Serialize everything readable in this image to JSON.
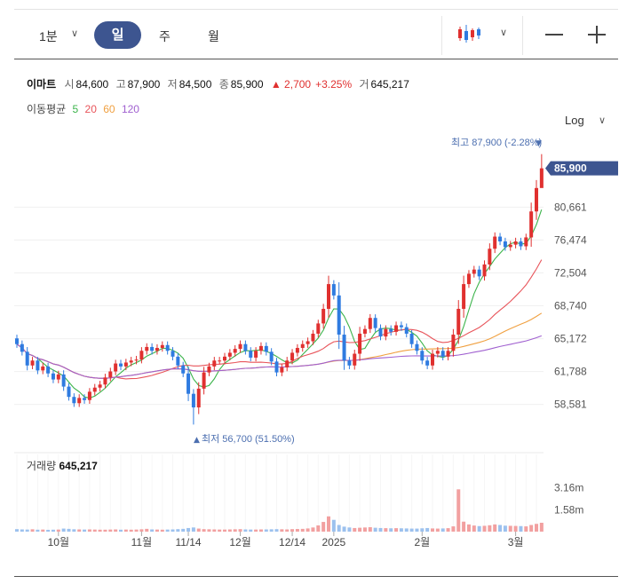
{
  "toolbar": {
    "period_minute": "1분",
    "tab_day": "일",
    "tab_week": "주",
    "tab_month": "월",
    "log_label": "Log"
  },
  "quote": {
    "name": "이마트",
    "open_label": "시",
    "open": "84,600",
    "high_label": "고",
    "high": "87,900",
    "low_label": "저",
    "low": "84,500",
    "close_label": "종",
    "close": "85,900",
    "change": "▲ 2,700",
    "change_pct": "+3.25%",
    "volume_label": "거",
    "volume": "645,217"
  },
  "moving_average": {
    "label": "이동평균",
    "periods": [
      "5",
      "20",
      "60",
      "120"
    ],
    "colors": [
      "#3cb44b",
      "#e8545a",
      "#f0a040",
      "#a060d0"
    ]
  },
  "volume_caption": {
    "label": "거래량",
    "value": "645,217"
  },
  "colors": {
    "up": "#e0302f",
    "down": "#2f7be0",
    "accent": "#3d5590"
  },
  "chart_data": {
    "type": "candlestick",
    "scale": "log",
    "y_ticks": [
      "58,581",
      "61,788",
      "65,172",
      "68,740",
      "72,504",
      "76,474",
      "80,661"
    ],
    "y_tick_values": [
      58581,
      61788,
      65172,
      68740,
      72504,
      76474,
      80661
    ],
    "ylim": [
      56000,
      89000
    ],
    "x_ticks": [
      "10월",
      "11월",
      "11/14",
      "12월",
      "12/14",
      "2025",
      "2월",
      "3월"
    ],
    "x_tick_index": [
      8,
      24,
      33,
      43,
      53,
      61,
      78,
      96
    ],
    "current_price_label": "85,900",
    "high_annotation": "최고 87,900 (-2.28%)",
    "high_annotation_marker": "▼",
    "low_annotation": "최저 56,700 (51.50%)",
    "low_annotation_marker": "▲",
    "volume_ticks": [
      "3.16m",
      "1.58m"
    ],
    "volume_tick_values": [
      3160000,
      1580000
    ],
    "close": [
      64600,
      63800,
      62400,
      62900,
      61900,
      62300,
      61600,
      61000,
      61500,
      60300,
      59300,
      58700,
      59200,
      59000,
      59800,
      60200,
      60500,
      61200,
      61800,
      62600,
      62300,
      62700,
      62900,
      63000,
      63900,
      64300,
      63900,
      64200,
      64500,
      63900,
      63300,
      62400,
      61600,
      59600,
      58300,
      60100,
      61700,
      62300,
      62900,
      62900,
      63300,
      63700,
      64100,
      64600,
      63900,
      63200,
      63900,
      64400,
      63800,
      62800,
      61700,
      62200,
      62900,
      63700,
      64200,
      64600,
      64900,
      65700,
      66800,
      68400,
      71200,
      69900,
      65600,
      62900,
      62400,
      63600,
      65700,
      66200,
      67400,
      66300,
      65400,
      66200,
      65900,
      66600,
      66400,
      65700,
      64600,
      63900,
      62900,
      62400,
      63600,
      63900,
      63300,
      63900,
      65600,
      68400,
      71200,
      72400,
      72900,
      72100,
      73500,
      75400,
      76900,
      76300,
      75600,
      75900,
      76300,
      75700,
      76800,
      80100,
      83200,
      85900
    ],
    "volume_values": [
      180000,
      160000,
      150000,
      170000,
      140000,
      150000,
      130000,
      140000,
      150000,
      220000,
      200000,
      170000,
      160000,
      150000,
      160000,
      150000,
      140000,
      140000,
      150000,
      160000,
      140000,
      150000,
      140000,
      150000,
      170000,
      200000,
      160000,
      150000,
      140000,
      150000,
      160000,
      180000,
      200000,
      260000,
      300000,
      220000,
      180000,
      170000,
      160000,
      150000,
      150000,
      160000,
      170000,
      180000,
      160000,
      150000,
      150000,
      160000,
      160000,
      170000,
      180000,
      170000,
      160000,
      180000,
      190000,
      200000,
      230000,
      300000,
      450000,
      700000,
      1100000,
      850000,
      480000,
      360000,
      300000,
      260000,
      280000,
      300000,
      320000,
      280000,
      260000,
      250000,
      240000,
      250000,
      240000,
      230000,
      220000,
      220000,
      240000,
      260000,
      230000,
      220000,
      230000,
      250000,
      380000,
      3050000,
      720000,
      520000,
      440000,
      400000,
      420000,
      460000,
      520000,
      480000,
      430000,
      420000,
      410000,
      400000,
      380000,
      480000,
      560000,
      640000
    ]
  }
}
